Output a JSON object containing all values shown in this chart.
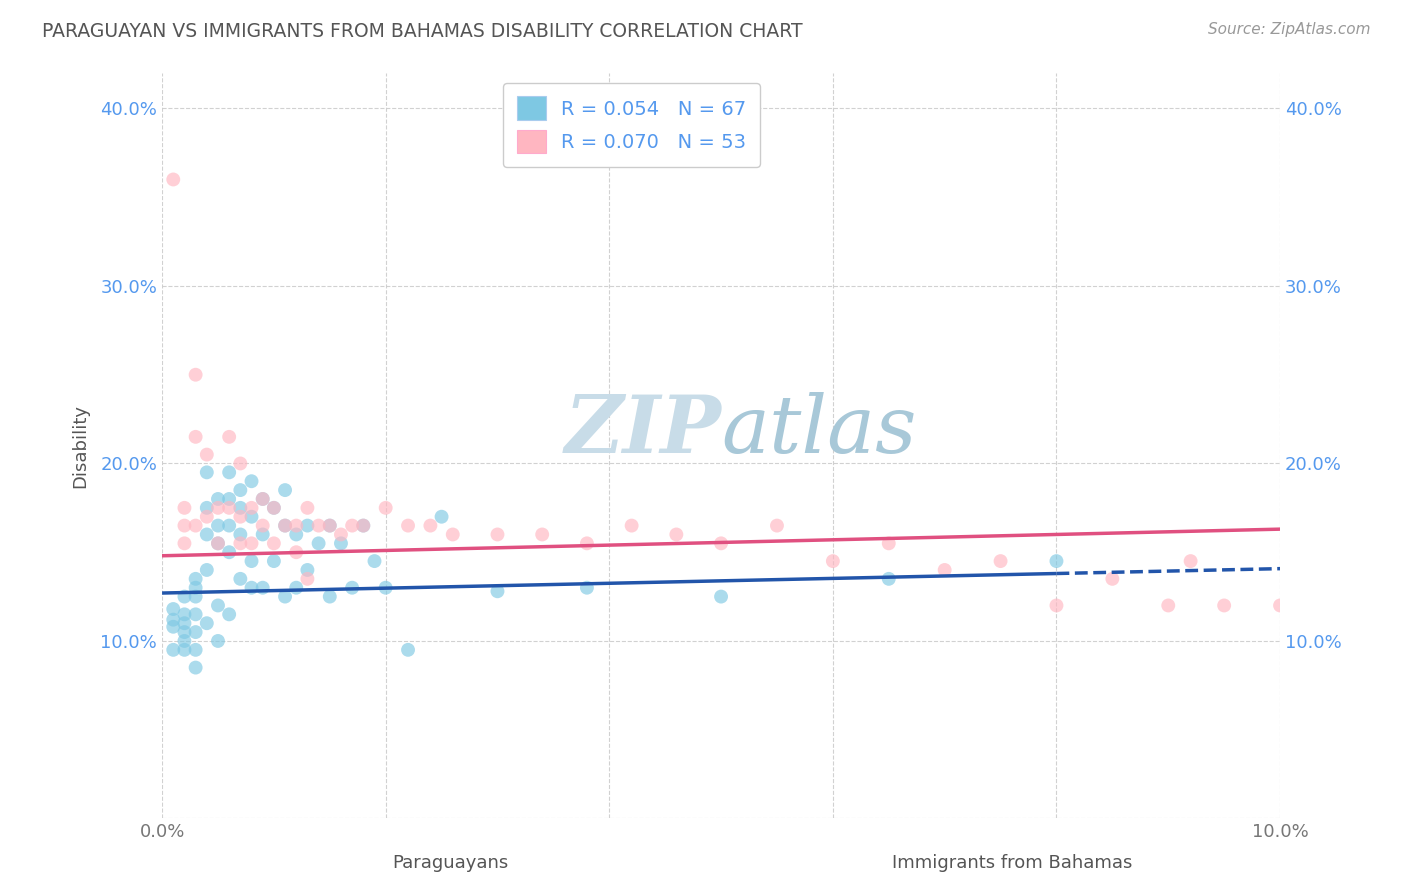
{
  "title": "PARAGUAYAN VS IMMIGRANTS FROM BAHAMAS DISABILITY CORRELATION CHART",
  "source_text": "Source: ZipAtlas.com",
  "ylabel": "Disability",
  "xlabel_paraguayan": "Paraguayans",
  "xlabel_bahamas": "Immigrants from Bahamas",
  "xlim": [
    0.0,
    0.1
  ],
  "ylim": [
    0.0,
    0.42
  ],
  "xticks": [
    0.0,
    0.02,
    0.04,
    0.06,
    0.08,
    0.1
  ],
  "yticks": [
    0.0,
    0.1,
    0.2,
    0.3,
    0.4
  ],
  "R_paraguayan": 0.054,
  "N_paraguayan": 67,
  "R_bahamas": 0.07,
  "N_bahamas": 53,
  "color_paraguayan": "#7EC8E3",
  "color_bahamas": "#FFB6C1",
  "color_line_paraguayan": "#2255AA",
  "color_line_bahamas": "#E05080",
  "color_title": "#555555",
  "color_tick_labels": "#5599EE",
  "watermark_text": "ZIPatlas",
  "watermark_color": "#D0E8F2",
  "paraguayan_x": [
    0.001,
    0.001,
    0.001,
    0.001,
    0.002,
    0.002,
    0.002,
    0.002,
    0.002,
    0.002,
    0.003,
    0.003,
    0.003,
    0.003,
    0.003,
    0.003,
    0.003,
    0.004,
    0.004,
    0.004,
    0.004,
    0.004,
    0.005,
    0.005,
    0.005,
    0.005,
    0.005,
    0.006,
    0.006,
    0.006,
    0.006,
    0.006,
    0.007,
    0.007,
    0.007,
    0.007,
    0.008,
    0.008,
    0.008,
    0.008,
    0.009,
    0.009,
    0.009,
    0.01,
    0.01,
    0.011,
    0.011,
    0.011,
    0.012,
    0.012,
    0.013,
    0.013,
    0.014,
    0.015,
    0.015,
    0.016,
    0.017,
    0.018,
    0.019,
    0.02,
    0.022,
    0.025,
    0.03,
    0.038,
    0.05,
    0.065,
    0.08
  ],
  "paraguayan_y": [
    0.118,
    0.108,
    0.112,
    0.095,
    0.115,
    0.105,
    0.125,
    0.095,
    0.11,
    0.1,
    0.135,
    0.125,
    0.115,
    0.105,
    0.095,
    0.085,
    0.13,
    0.175,
    0.16,
    0.195,
    0.14,
    0.11,
    0.165,
    0.155,
    0.18,
    0.12,
    0.1,
    0.195,
    0.18,
    0.165,
    0.15,
    0.115,
    0.185,
    0.175,
    0.16,
    0.135,
    0.19,
    0.17,
    0.145,
    0.13,
    0.18,
    0.16,
    0.13,
    0.175,
    0.145,
    0.185,
    0.165,
    0.125,
    0.16,
    0.13,
    0.165,
    0.14,
    0.155,
    0.165,
    0.125,
    0.155,
    0.13,
    0.165,
    0.145,
    0.13,
    0.095,
    0.17,
    0.128,
    0.13,
    0.125,
    0.135,
    0.145
  ],
  "bahamas_x": [
    0.001,
    0.002,
    0.002,
    0.002,
    0.003,
    0.003,
    0.003,
    0.004,
    0.004,
    0.005,
    0.005,
    0.006,
    0.006,
    0.007,
    0.007,
    0.007,
    0.008,
    0.008,
    0.009,
    0.009,
    0.01,
    0.01,
    0.011,
    0.012,
    0.012,
    0.013,
    0.013,
    0.014,
    0.015,
    0.016,
    0.017,
    0.018,
    0.02,
    0.022,
    0.024,
    0.026,
    0.03,
    0.034,
    0.038,
    0.042,
    0.046,
    0.05,
    0.055,
    0.06,
    0.065,
    0.07,
    0.075,
    0.08,
    0.085,
    0.09,
    0.092,
    0.095,
    0.1
  ],
  "bahamas_y": [
    0.36,
    0.175,
    0.165,
    0.155,
    0.25,
    0.215,
    0.165,
    0.205,
    0.17,
    0.175,
    0.155,
    0.215,
    0.175,
    0.2,
    0.17,
    0.155,
    0.175,
    0.155,
    0.18,
    0.165,
    0.175,
    0.155,
    0.165,
    0.165,
    0.15,
    0.175,
    0.135,
    0.165,
    0.165,
    0.16,
    0.165,
    0.165,
    0.175,
    0.165,
    0.165,
    0.16,
    0.16,
    0.16,
    0.155,
    0.165,
    0.16,
    0.155,
    0.165,
    0.145,
    0.155,
    0.14,
    0.145,
    0.12,
    0.135,
    0.12,
    0.145,
    0.12,
    0.12
  ],
  "par_line_x0": 0.0,
  "par_line_x1": 0.08,
  "par_line_y0": 0.127,
  "par_line_y1": 0.138,
  "par_line_xdash0": 0.08,
  "par_line_xdash1": 0.1,
  "bah_line_x0": 0.0,
  "bah_line_x1": 0.1,
  "bah_line_y0": 0.148,
  "bah_line_y1": 0.163
}
